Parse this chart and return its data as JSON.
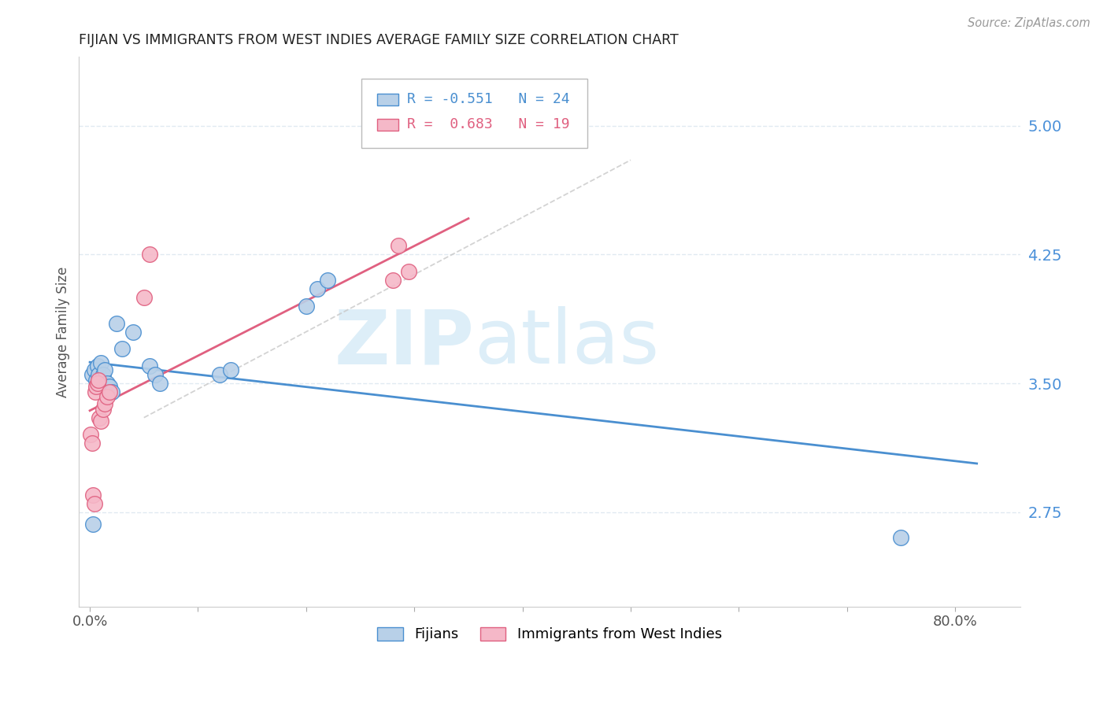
{
  "title": "FIJIAN VS IMMIGRANTS FROM WEST INDIES AVERAGE FAMILY SIZE CORRELATION CHART",
  "source": "Source: ZipAtlas.com",
  "ylabel": "Average Family Size",
  "y_ticks_right": [
    2.75,
    3.5,
    4.25,
    5.0
  ],
  "xlim": [
    -0.01,
    0.86
  ],
  "ylim": [
    2.2,
    5.4
  ],
  "fijian_x": [
    0.002,
    0.004,
    0.006,
    0.007,
    0.008,
    0.01,
    0.012,
    0.014,
    0.016,
    0.018,
    0.02,
    0.025,
    0.03,
    0.04,
    0.055,
    0.06,
    0.065,
    0.12,
    0.13,
    0.2,
    0.21,
    0.22,
    0.75,
    0.003
  ],
  "fijian_y": [
    3.55,
    3.58,
    3.52,
    3.6,
    3.55,
    3.62,
    3.55,
    3.58,
    3.5,
    3.48,
    3.45,
    3.85,
    3.7,
    3.8,
    3.6,
    3.55,
    3.5,
    3.55,
    3.58,
    3.95,
    4.05,
    4.1,
    2.6,
    2.68
  ],
  "wi_x": [
    0.001,
    0.002,
    0.003,
    0.004,
    0.005,
    0.006,
    0.007,
    0.008,
    0.009,
    0.01,
    0.012,
    0.014,
    0.016,
    0.018,
    0.05,
    0.055,
    0.28,
    0.285,
    0.295
  ],
  "wi_y": [
    3.2,
    3.15,
    2.85,
    2.8,
    3.45,
    3.48,
    3.5,
    3.52,
    3.3,
    3.28,
    3.35,
    3.38,
    3.42,
    3.45,
    4.0,
    4.25,
    4.1,
    4.3,
    4.15
  ],
  "fijian_R": -0.551,
  "fijian_N": 24,
  "wi_R": 0.683,
  "wi_N": 19,
  "fijian_color": "#b8d0e8",
  "wi_color": "#f5b8c8",
  "fijian_line_color": "#4a8fd0",
  "wi_line_color": "#e06080",
  "ref_line_color": "#c8c8c8",
  "background_color": "#ffffff",
  "grid_color": "#dde8f0",
  "title_color": "#222222",
  "right_axis_color": "#4a90d9",
  "watermark_zip": "ZIP",
  "watermark_atlas": "atlas",
  "watermark_color": "#ddeef8"
}
